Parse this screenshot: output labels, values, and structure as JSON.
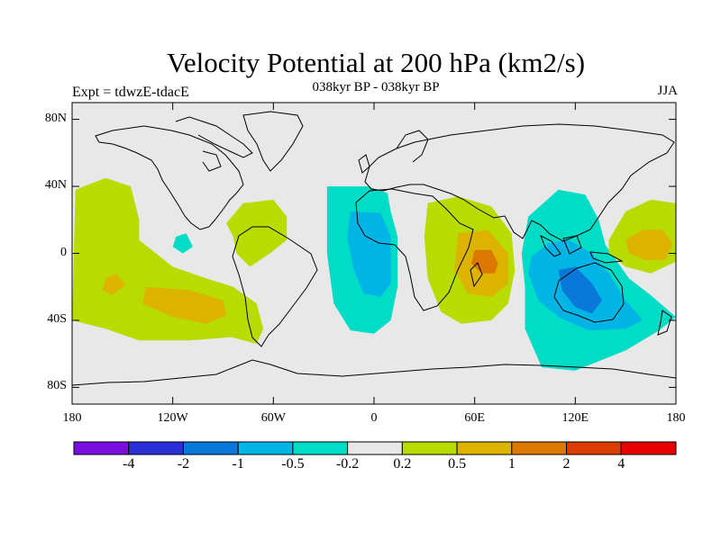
{
  "title": "Velocity Potential at 200 hPa (km2/s)",
  "experiment": "Expt = tdwzE-tdacE",
  "period": "038kyr BP - 038kyr BP",
  "season": "JJA",
  "axes": {
    "lon_ticks": [
      {
        "value": -180,
        "label": "180"
      },
      {
        "value": -120,
        "label": "120W"
      },
      {
        "value": -60,
        "label": "60W"
      },
      {
        "value": 0,
        "label": "0"
      },
      {
        "value": 60,
        "label": "60E"
      },
      {
        "value": 120,
        "label": "120E"
      },
      {
        "value": 180,
        "label": "180"
      }
    ],
    "lat_ticks": [
      {
        "value": 80,
        "label": "80N"
      },
      {
        "value": 40,
        "label": "40N"
      },
      {
        "value": 0,
        "label": "0"
      },
      {
        "value": -40,
        "label": "40S"
      },
      {
        "value": -80,
        "label": "80S"
      }
    ],
    "lon_range": [
      -180,
      180
    ],
    "lat_range": [
      -90,
      90
    ]
  },
  "colorbar": {
    "colors": [
      "#7a10e0",
      "#2a2fd8",
      "#0a78d8",
      "#00b4e6",
      "#00dcc6",
      "#e8e8e8",
      "#b8dc00",
      "#dcb400",
      "#dc7800",
      "#dc3c00",
      "#e80000"
    ],
    "boundaries": [
      "-4",
      "-2",
      "-1",
      "-0.5",
      "-0.2",
      "0.2",
      "0.5",
      "1",
      "2",
      "4"
    ]
  },
  "chart_data": {
    "type": "heatmap",
    "title": "Velocity Potential at 200 hPa (km2/s)",
    "subtitle": "038kyr BP - 038kyr BP",
    "levels": [
      -4,
      -2,
      -1,
      -0.5,
      -0.2,
      0.2,
      0.5,
      1,
      2,
      4
    ],
    "regions": [
      {
        "level": "0.2 to 0.5",
        "color": "#b8dc00",
        "points": [
          [
            -180,
            -40
          ],
          [
            -178,
            38
          ],
          [
            -160,
            45
          ],
          [
            -145,
            40
          ],
          [
            -140,
            20
          ],
          [
            -140,
            8
          ],
          [
            -120,
            -8
          ],
          [
            -100,
            -15
          ],
          [
            -84,
            -20
          ],
          [
            -70,
            -30
          ],
          [
            -66,
            -45
          ],
          [
            -70,
            -54
          ],
          [
            -85,
            -50
          ],
          [
            -110,
            -52
          ],
          [
            -140,
            -52
          ],
          [
            -160,
            -45
          ]
        ]
      },
      {
        "level": "0.5 to 1",
        "color": "#dcb400",
        "points": [
          [
            -160,
            -15
          ],
          [
            -154,
            -12
          ],
          [
            -148,
            -19
          ],
          [
            -156,
            -25
          ],
          [
            -162,
            -22
          ]
        ]
      },
      {
        "level": "0.5 to 1",
        "color": "#dcb400",
        "points": [
          [
            -136,
            -20
          ],
          [
            -110,
            -22
          ],
          [
            -90,
            -28
          ],
          [
            -88,
            -37
          ],
          [
            -100,
            -42
          ],
          [
            -120,
            -38
          ],
          [
            -138,
            -30
          ]
        ]
      },
      {
        "level": "0.2 to 0.5",
        "color": "#b8dc00",
        "points": [
          [
            -88,
            18
          ],
          [
            -78,
            30
          ],
          [
            -60,
            32
          ],
          [
            -52,
            22
          ],
          [
            -52,
            8
          ],
          [
            -62,
            0
          ],
          [
            -74,
            -8
          ],
          [
            -82,
            0
          ],
          [
            -84,
            10
          ]
        ]
      },
      {
        "level": "-0.5 to -0.2",
        "color": "#00dcc6",
        "points": [
          [
            -118,
            10
          ],
          [
            -112,
            12
          ],
          [
            -108,
            4
          ],
          [
            -114,
            0
          ],
          [
            -120,
            4
          ]
        ]
      },
      {
        "level": "-0.5 to -0.2",
        "color": "#00dcc6",
        "points": [
          [
            -28,
            40
          ],
          [
            -4,
            40
          ],
          [
            8,
            36
          ],
          [
            10,
            25
          ],
          [
            14,
            10
          ],
          [
            14,
            -20
          ],
          [
            10,
            -40
          ],
          [
            0,
            -48
          ],
          [
            -14,
            -46
          ],
          [
            -24,
            -30
          ],
          [
            -28,
            0
          ]
        ]
      },
      {
        "level": "-1 to -0.5",
        "color": "#00b4e6",
        "points": [
          [
            -14,
            25
          ],
          [
            4,
            24
          ],
          [
            10,
            10
          ],
          [
            10,
            -18
          ],
          [
            4,
            -26
          ],
          [
            -6,
            -24
          ],
          [
            -12,
            -10
          ],
          [
            -16,
            10
          ]
        ]
      },
      {
        "level": "0.2 to 0.5",
        "color": "#b8dc00",
        "points": [
          [
            32,
            30
          ],
          [
            50,
            34
          ],
          [
            70,
            28
          ],
          [
            82,
            12
          ],
          [
            84,
            -10
          ],
          [
            80,
            -30
          ],
          [
            70,
            -40
          ],
          [
            52,
            -42
          ],
          [
            40,
            -35
          ],
          [
            32,
            -15
          ],
          [
            30,
            10
          ]
        ]
      },
      {
        "level": "0.5 to 1",
        "color": "#dcb400",
        "points": [
          [
            50,
            12
          ],
          [
            68,
            14
          ],
          [
            80,
            0
          ],
          [
            80,
            -18
          ],
          [
            70,
            -26
          ],
          [
            56,
            -24
          ],
          [
            48,
            -10
          ]
        ]
      },
      {
        "level": "1 to 2",
        "color": "#dc7800",
        "points": [
          [
            60,
            2
          ],
          [
            70,
            2
          ],
          [
            74,
            -6
          ],
          [
            72,
            -12
          ],
          [
            64,
            -12
          ],
          [
            58,
            -6
          ]
        ]
      },
      {
        "level": "-0.5 to -0.2",
        "color": "#00dcc6",
        "points": [
          [
            92,
            22
          ],
          [
            110,
            38
          ],
          [
            126,
            35
          ],
          [
            134,
            20
          ],
          [
            138,
            5
          ],
          [
            152,
            -15
          ],
          [
            165,
            -25
          ],
          [
            180,
            -38
          ],
          [
            170,
            -46
          ],
          [
            150,
            -58
          ],
          [
            120,
            -70
          ],
          [
            100,
            -68
          ],
          [
            90,
            -45
          ],
          [
            90,
            -20
          ],
          [
            88,
            0
          ]
        ]
      },
      {
        "level": "-1 to -0.5",
        "color": "#00b4e6",
        "points": [
          [
            94,
            -2
          ],
          [
            104,
            6
          ],
          [
            116,
            8
          ],
          [
            130,
            0
          ],
          [
            140,
            -12
          ],
          [
            150,
            -28
          ],
          [
            160,
            -40
          ],
          [
            150,
            -45
          ],
          [
            128,
            -46
          ],
          [
            110,
            -38
          ],
          [
            98,
            -28
          ],
          [
            92,
            -12
          ]
        ]
      },
      {
        "level": "-2 to -1",
        "color": "#0a78d8",
        "points": [
          [
            110,
            -10
          ],
          [
            120,
            -8
          ],
          [
            130,
            -18
          ],
          [
            136,
            -28
          ],
          [
            130,
            -36
          ],
          [
            120,
            -32
          ],
          [
            112,
            -22
          ]
        ]
      },
      {
        "level": "0.2 to 0.5",
        "color": "#b8dc00",
        "points": [
          [
            140,
            8
          ],
          [
            150,
            25
          ],
          [
            165,
            32
          ],
          [
            180,
            30
          ],
          [
            180,
            -5
          ],
          [
            165,
            -12
          ],
          [
            150,
            -8
          ],
          [
            140,
            0
          ]
        ]
      },
      {
        "level": "0.5 to 1",
        "color": "#dcb400",
        "points": [
          [
            150,
            8
          ],
          [
            160,
            14
          ],
          [
            172,
            14
          ],
          [
            178,
            6
          ],
          [
            174,
            -4
          ],
          [
            162,
            -4
          ],
          [
            152,
            0
          ]
        ]
      }
    ]
  }
}
